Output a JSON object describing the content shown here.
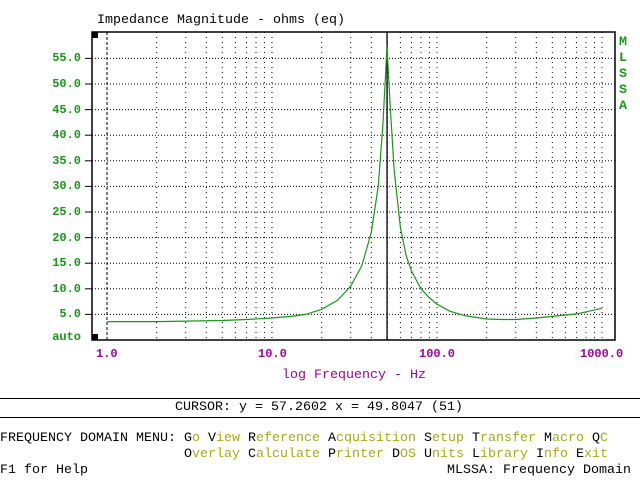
{
  "colors": {
    "axis_labels": "#189818",
    "xlabel": "#a000a0",
    "curve": "#189818",
    "menu_accent": "#a8a818"
  },
  "brand_vertical": [
    "M",
    "L",
    "S",
    "S",
    "A"
  ],
  "cursor_readout": "CURSOR: y = 57.2602 x = 49.8047 (51)",
  "menu": {
    "title": "FREQUENCY DOMAIN MENU:",
    "row1": [
      {
        "key": "G",
        "rest": "o"
      },
      {
        "key": "V",
        "rest": "iew"
      },
      {
        "key": "R",
        "rest": "eference"
      },
      {
        "key": "A",
        "rest": "cquisition"
      },
      {
        "key": "S",
        "rest": "etup"
      },
      {
        "key": "T",
        "rest": "ransfer"
      },
      {
        "key": "M",
        "rest": "acro"
      },
      {
        "key": "Q",
        "rest": "C"
      }
    ],
    "row2": [
      {
        "key": "O",
        "rest": "verlay"
      },
      {
        "key": "C",
        "rest": "alculate"
      },
      {
        "key": "P",
        "rest": "rinter"
      },
      {
        "key": "D",
        "rest": "OS"
      },
      {
        "key": "U",
        "rest": "nits"
      },
      {
        "key": "L",
        "rest": "ibrary"
      },
      {
        "key": "I",
        "rest": "nfo"
      },
      {
        "key": "E",
        "rest": "xit"
      }
    ]
  },
  "status": {
    "help": "F1 for Help",
    "mode": "MLSSA: Frequency Domain"
  },
  "chart_data": {
    "type": "line",
    "title": "Impedance Magnitude - ohms (eq)",
    "xlabel": "log Frequency - Hz",
    "ylabel": "",
    "xscale": "log",
    "xlim": [
      1,
      1000
    ],
    "ylim": [
      0,
      60
    ],
    "xticks": [
      {
        "v": 1,
        "label": "1.0"
      },
      {
        "v": 10,
        "label": "10.0"
      },
      {
        "v": 100,
        "label": "100.0"
      },
      {
        "v": 1000,
        "label": "1000.0"
      }
    ],
    "yticks": [
      {
        "v": 5,
        "label": "5.0"
      },
      {
        "v": 10,
        "label": "10.0"
      },
      {
        "v": 15,
        "label": "15.0"
      },
      {
        "v": 20,
        "label": "20.0"
      },
      {
        "v": 25,
        "label": "25.0"
      },
      {
        "v": 30,
        "label": "30.0"
      },
      {
        "v": 35,
        "label": "35.0"
      },
      {
        "v": 40,
        "label": "40.0"
      },
      {
        "v": 45,
        "label": "45.0"
      },
      {
        "v": 50,
        "label": "50.0"
      },
      {
        "v": 55,
        "label": "55.0"
      }
    ],
    "y_bottom_label": "auto",
    "grid": true,
    "cursor_x": 49.8047,
    "series": [
      {
        "name": "Impedance",
        "x": [
          1,
          2,
          3,
          5,
          7,
          10,
          13,
          16,
          20,
          25,
          30,
          35,
          40,
          44,
          47,
          49.8,
          52,
          55,
          60,
          65,
          70,
          80,
          90,
          100,
          120,
          150,
          200,
          250,
          300,
          400,
          500,
          700,
          1000
        ],
        "y": [
          3.6,
          3.6,
          3.7,
          3.8,
          4.0,
          4.3,
          4.6,
          5.0,
          6.0,
          7.8,
          10.5,
          14.5,
          21,
          30,
          42,
          57.3,
          46,
          33,
          22,
          16.5,
          13.5,
          10,
          8.2,
          7.0,
          5.6,
          4.7,
          4.1,
          4.0,
          4.0,
          4.3,
          4.6,
          5.1,
          6.2
        ]
      }
    ]
  }
}
